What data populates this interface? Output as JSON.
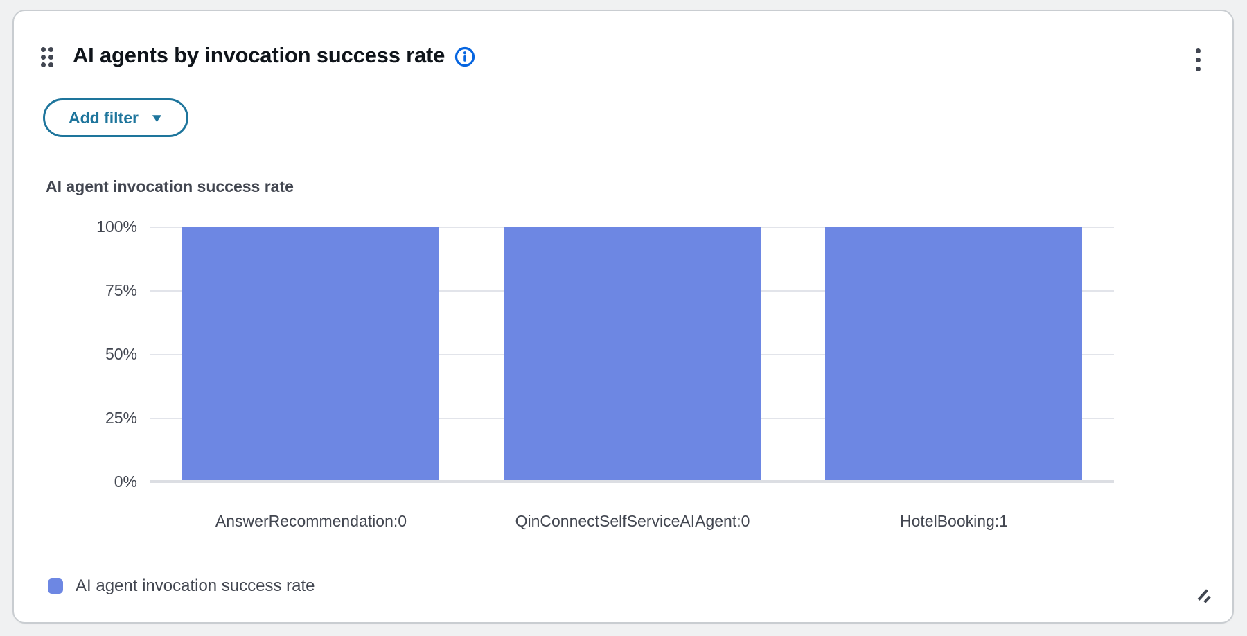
{
  "widget": {
    "title": "AI agents by invocation success rate",
    "filter_button_label": "Add filter",
    "kebab_menu": "options-menu",
    "legend_label": "AI agent invocation success rate"
  },
  "colors": {
    "bar": "#6D87E3",
    "accent_teal": "#1E759C",
    "info_blue": "#0665e0",
    "text_primary": "#0f141a",
    "text_secondary": "#424650",
    "gridline": "#e2e4ea"
  },
  "chart_data": {
    "type": "bar",
    "title": "AI agent invocation success rate",
    "categories": [
      "AnswerRecommendation:0",
      "QinConnectSelfServiceAIAgent:0",
      "HotelBooking:1"
    ],
    "values": [
      100,
      100,
      100
    ],
    "value_unit": "%",
    "xlabel": "",
    "ylabel": "",
    "ylim": [
      0,
      100
    ],
    "yticks_top_to_bottom": [
      "100%",
      "75%",
      "50%",
      "25%",
      "0%"
    ],
    "grid": true,
    "legend": [
      {
        "label": "AI agent invocation success rate",
        "color": "#6D87E3"
      }
    ],
    "legend_position": "bottom-left"
  }
}
